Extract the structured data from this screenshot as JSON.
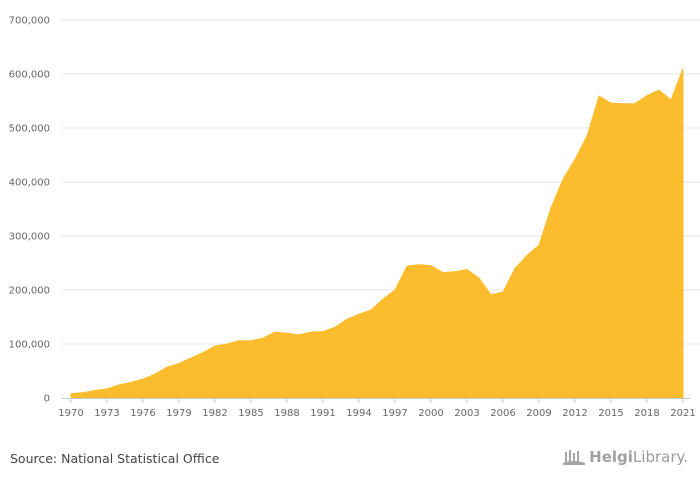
{
  "chart_data": {
    "type": "area",
    "x": [
      1970,
      1971,
      1972,
      1973,
      1974,
      1975,
      1976,
      1977,
      1978,
      1979,
      1980,
      1981,
      1982,
      1983,
      1984,
      1985,
      1986,
      1987,
      1988,
      1989,
      1990,
      1991,
      1992,
      1993,
      1994,
      1995,
      1996,
      1997,
      1998,
      1999,
      2000,
      2001,
      2002,
      2003,
      2004,
      2005,
      2006,
      2007,
      2008,
      2009,
      2010,
      2011,
      2012,
      2013,
      2014,
      2015,
      2016,
      2017,
      2018,
      2019,
      2020,
      2021
    ],
    "values": [
      8000,
      10000,
      14000,
      17000,
      24000,
      29000,
      35000,
      44000,
      57000,
      64000,
      74000,
      84000,
      96000,
      100000,
      106000,
      106000,
      111000,
      122000,
      120000,
      117000,
      122000,
      123000,
      131000,
      146000,
      155000,
      163000,
      183000,
      200000,
      244000,
      247000,
      245000,
      232000,
      234000,
      238000,
      222000,
      191000,
      196000,
      240000,
      264000,
      283000,
      352000,
      405000,
      442000,
      485000,
      559000,
      546000,
      545000,
      545000,
      560000,
      570000,
      552000,
      610000
    ],
    "x_ticks": [
      "1970",
      "1973",
      "1976",
      "1979",
      "1982",
      "1985",
      "1988",
      "1991",
      "1994",
      "1997",
      "2000",
      "2003",
      "2006",
      "2009",
      "2012",
      "2015",
      "2018",
      "2021"
    ],
    "y_ticks": [
      "0",
      "100,000",
      "200,000",
      "300,000",
      "400,000",
      "500,000",
      "600,000",
      "700,000"
    ],
    "ylim": [
      0,
      700000
    ],
    "xlim": [
      1970,
      2021
    ],
    "grid": true,
    "fill_color": "#fbbc2e",
    "title": "",
    "xlabel": "",
    "ylabel": ""
  },
  "footer": {
    "source": "Source: National Statistical Office",
    "brand_prefix": "Helgi",
    "brand_suffix": "Library."
  }
}
